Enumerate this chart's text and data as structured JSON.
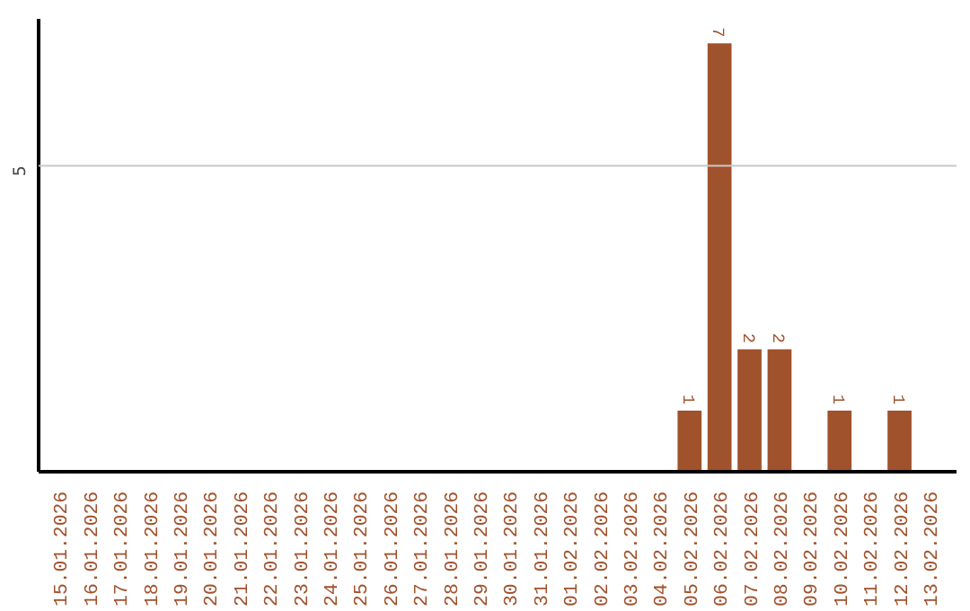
{
  "chart_data": {
    "type": "bar",
    "categories": [
      "15.01.2026",
      "16.01.2026",
      "17.01.2026",
      "18.01.2026",
      "19.01.2026",
      "20.01.2026",
      "21.01.2026",
      "22.01.2026",
      "23.01.2026",
      "24.01.2026",
      "25.01.2026",
      "26.01.2026",
      "27.01.2026",
      "28.01.2026",
      "29.01.2026",
      "30.01.2026",
      "31.01.2026",
      "01.02.2026",
      "02.02.2026",
      "03.02.2026",
      "04.02.2026",
      "05.02.2026",
      "06.02.2026",
      "07.02.2026",
      "08.02.2026",
      "09.02.2026",
      "10.02.2026",
      "11.02.2026",
      "12.02.2026",
      "13.02.2026"
    ],
    "values": [
      null,
      null,
      null,
      null,
      null,
      null,
      null,
      null,
      null,
      null,
      null,
      null,
      null,
      null,
      null,
      null,
      null,
      null,
      null,
      null,
      null,
      1,
      7,
      2,
      2,
      null,
      1,
      null,
      1,
      null
    ],
    "data_labels": true,
    "color": "#a0522d",
    "ylim": [
      0,
      7.4
    ],
    "ref_lines": [
      {
        "axis": "y",
        "value": 5,
        "label": "5",
        "color": "#c8c8c8"
      }
    ]
  }
}
